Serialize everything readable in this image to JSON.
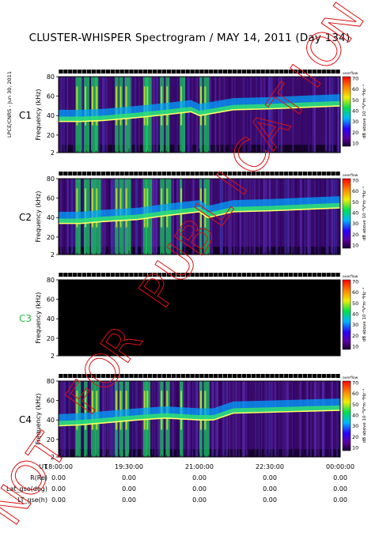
{
  "title": "CLUSTER-WHISPER Spectrogram / MAY 14, 2011 (Day 134)",
  "credit": "LPCE/CNRS - Jun 30, 2011",
  "colorbar": {
    "units_label": "dB above 10⁻⁸V²m⁻²Hz⁻¹",
    "top_label": "overflow",
    "ticks": [
      "10",
      "20",
      "30",
      "40",
      "50",
      "60",
      "70"
    ]
  },
  "chart_data": {
    "type": "heatmap",
    "xlabel": "UT",
    "ylabel": "Frequency (kHz)",
    "ylim": [
      2,
      80
    ],
    "yticks": [
      "2",
      "20",
      "40",
      "60",
      "80"
    ],
    "x_ticks": [
      "18:00:00",
      "19:30:00",
      "21:00:00",
      "22:30:00",
      "00:00:00"
    ],
    "colorscale_db": [
      10,
      70
    ],
    "panels": [
      {
        "name": "C1",
        "label_color": "#000000",
        "has_data": true,
        "plasma_line_khz": [
          [
            0,
            34
          ],
          [
            0.08,
            34
          ],
          [
            0.16,
            35
          ],
          [
            0.28,
            38
          ],
          [
            0.38,
            41
          ],
          [
            0.47,
            44
          ],
          [
            0.5,
            40
          ],
          [
            0.62,
            46
          ],
          [
            0.75,
            47
          ],
          [
            1,
            50
          ]
        ]
      },
      {
        "name": "C2",
        "label_color": "#000000",
        "has_data": true,
        "plasma_line_khz": [
          [
            0,
            34
          ],
          [
            0.08,
            34
          ],
          [
            0.16,
            36
          ],
          [
            0.28,
            38
          ],
          [
            0.38,
            42
          ],
          [
            0.5,
            46
          ],
          [
            0.53,
            40
          ],
          [
            0.62,
            46
          ],
          [
            0.75,
            47
          ],
          [
            1,
            50
          ]
        ]
      },
      {
        "name": "C3",
        "label_color": "#22bb44",
        "has_data": false,
        "plasma_line_khz": []
      },
      {
        "name": "C4",
        "label_color": "#000000",
        "has_data": true,
        "plasma_line_khz": [
          [
            0,
            34
          ],
          [
            0.08,
            35
          ],
          [
            0.16,
            37
          ],
          [
            0.28,
            40
          ],
          [
            0.38,
            42
          ],
          [
            0.5,
            40
          ],
          [
            0.55,
            40
          ],
          [
            0.62,
            47
          ],
          [
            0.75,
            48
          ],
          [
            1,
            50
          ]
        ]
      }
    ]
  },
  "ephemeris": {
    "rows": [
      {
        "label": "UT",
        "values": [
          "18:00:00",
          "19:30:00",
          "21:00:00",
          "22:30:00",
          "00:00:00"
        ]
      },
      {
        "label": "R(Re)",
        "values": [
          "0.00",
          "0.00",
          "0.00",
          "0.00",
          "0.00"
        ]
      },
      {
        "label": "Lat_gse(deg)",
        "values": [
          "0.00",
          "0.00",
          "0.00",
          "0.00",
          "0.00"
        ]
      },
      {
        "label": "LT_gse(h)",
        "values": [
          "0.00",
          "0.00",
          "0.00",
          "0.00",
          "0.00"
        ]
      }
    ]
  },
  "watermark": "NOT FOR PUBLICATION",
  "colors": {
    "background": "#000000",
    "watermark": "#dd1111",
    "c3_label": "#22bb44"
  }
}
